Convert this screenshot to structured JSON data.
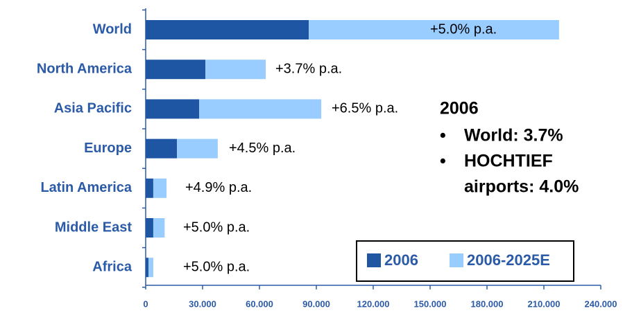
{
  "chart_data": {
    "type": "stacked_bar_horizontal",
    "categories": [
      "World",
      "North America",
      "Asia Pacific",
      "Europe",
      "Latin America",
      "Middle East",
      "Africa"
    ],
    "series": [
      {
        "name": "2006",
        "color": "#1f56a3",
        "values": [
          86000,
          31500,
          28200,
          16500,
          4000,
          4000,
          1500
        ]
      },
      {
        "name": "2006-2025E",
        "color": "#99ccff",
        "values": [
          132000,
          31800,
          64400,
          21500,
          7000,
          6000,
          2500
        ]
      }
    ],
    "annotations": [
      "+5.0% p.a.",
      "+3.7% p.a.",
      "+6.5% p.a.",
      "+4.5% p.a.",
      "+4.9% p.a.",
      "+5.0% p.a.",
      "+5.0% p.a."
    ],
    "xlim": [
      0,
      240000
    ],
    "xticks": [
      0,
      {
        "value": 30000,
        "label": "30.000"
      },
      {
        "value": 60000,
        "label": "60.000"
      },
      {
        "value": 90000,
        "label": "90.000"
      },
      {
        "value": 120000,
        "label": "120.000"
      },
      {
        "value": 150000,
        "label": "150.000"
      },
      {
        "value": 180000,
        "label": "180.000"
      },
      {
        "value": 210000,
        "label": "210.000"
      },
      {
        "value": 240000,
        "label": "240.000"
      }
    ],
    "note": {
      "heading": "2006",
      "bullets": [
        "World: 3.7%",
        "HOCHTIEF",
        "airports: 4.0%"
      ]
    }
  }
}
